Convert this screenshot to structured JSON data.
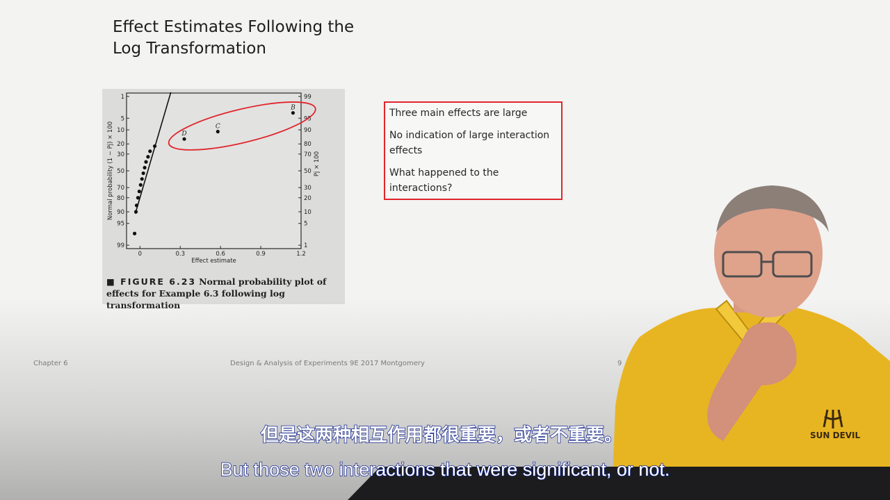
{
  "slide": {
    "title_line1": "Effect Estimates Following the",
    "title_line2": "Log Transformation"
  },
  "figure": {
    "label": "■ FIGURE 6.23",
    "caption_line1": "Normal probability plot of",
    "caption_line2": "effects for Example 6.3 following log transformation"
  },
  "callout": {
    "border_color": "#e0252b",
    "lines": [
      "Three main effects are large",
      "No indication of large interaction effects",
      "What happened to the interactions?"
    ]
  },
  "footer": {
    "chapter": "Chapter 6",
    "course": "Design & Analysis of Experiments 9E 2017 Montgomery",
    "page": "9"
  },
  "subtitles": {
    "chinese": "但是这两种相互作用都很重要，或者不重要。",
    "english": "But those two interactions that were significant, or not."
  },
  "chart_data": {
    "type": "scatter",
    "xlabel": "Effect estimate",
    "ylabel_left": "Normal probability (1 − Pj) × 100",
    "ylabel_right": "Pj × 100",
    "xlim": [
      -0.1,
      1.2
    ],
    "x_ticks": [
      "0",
      "0.3",
      "0.6",
      "0.9",
      "1.2"
    ],
    "left_ticks": [
      "1",
      "5",
      "10",
      "20",
      "30",
      "50",
      "70",
      "80",
      "90",
      "95",
      "99"
    ],
    "right_ticks": [
      "99",
      "95",
      "90",
      "80",
      "70",
      "50",
      "30",
      "20",
      "10",
      "5",
      "1"
    ],
    "points": [
      {
        "x": -0.04,
        "p": 97.5,
        "label": ""
      },
      {
        "x": -0.03,
        "p": 90,
        "label": ""
      },
      {
        "x": -0.025,
        "p": 86,
        "label": ""
      },
      {
        "x": -0.015,
        "p": 80,
        "label": ""
      },
      {
        "x": -0.005,
        "p": 74,
        "label": ""
      },
      {
        "x": 0.005,
        "p": 67,
        "label": ""
      },
      {
        "x": 0.015,
        "p": 60,
        "label": ""
      },
      {
        "x": 0.025,
        "p": 53,
        "label": ""
      },
      {
        "x": 0.035,
        "p": 46,
        "label": ""
      },
      {
        "x": 0.045,
        "p": 39,
        "label": ""
      },
      {
        "x": 0.06,
        "p": 33,
        "label": ""
      },
      {
        "x": 0.075,
        "p": 27,
        "label": ""
      },
      {
        "x": 0.11,
        "p": 22,
        "label": ""
      },
      {
        "x": 0.33,
        "p": 16,
        "label": "D"
      },
      {
        "x": 0.58,
        "p": 11,
        "label": "C"
      },
      {
        "x": 1.14,
        "p": 3.5,
        "label": "B"
      }
    ],
    "fit_line": [
      {
        "x": -0.035,
        "p": 91
      },
      {
        "x": 0.23,
        "p": 0.7
      }
    ],
    "highlight_ellipse_color": "#e0252b"
  }
}
